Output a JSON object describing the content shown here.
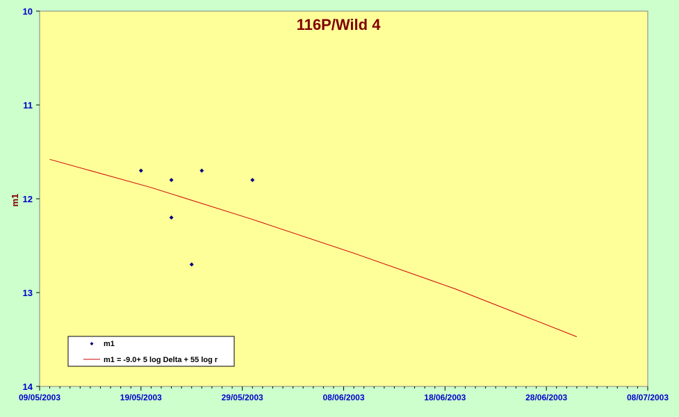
{
  "chart_data": {
    "type": "scatter",
    "title": "116P/Wild 4",
    "xlabel": "",
    "ylabel": "m1",
    "x_axis_type": "date",
    "xlim": [
      "09/05/2003",
      "08/07/2003"
    ],
    "x_tick_labels": [
      "09/05/2003",
      "19/05/2003",
      "29/05/2003",
      "08/06/2003",
      "18/06/2003",
      "28/06/2003",
      "08/07/2003"
    ],
    "ylim": [
      10,
      14
    ],
    "y_inverted": true,
    "y_tick_labels": [
      "10",
      "11",
      "12",
      "13",
      "14"
    ],
    "grid": false,
    "legend_position": "bottom-left",
    "series": [
      {
        "name": "m1",
        "type": "scatter",
        "color": "#000080",
        "points": [
          {
            "x": "19/05/2003",
            "y": 11.7
          },
          {
            "x": "22/05/2003",
            "y": 11.8
          },
          {
            "x": "22/05/2003",
            "y": 12.2
          },
          {
            "x": "24/05/2003",
            "y": 12.7
          },
          {
            "x": "25/05/2003",
            "y": 11.7
          },
          {
            "x": "30/05/2003",
            "y": 11.8
          }
        ]
      },
      {
        "name": "m1 = -9.0+ 5 log Delta + 55 log r",
        "type": "line",
        "color": "#cc0000",
        "points": [
          {
            "x": "10/05/2003",
            "y": 11.58
          },
          {
            "x": "20/05/2003",
            "y": 11.88
          },
          {
            "x": "30/05/2003",
            "y": 12.22
          },
          {
            "x": "09/06/2003",
            "y": 12.58
          },
          {
            "x": "19/06/2003",
            "y": 12.96
          },
          {
            "x": "01/07/2003",
            "y": 13.47
          }
        ]
      }
    ]
  },
  "colors": {
    "page_background": "#ccffcc",
    "plot_background": "#ffff99",
    "axis_label": "#0000cc",
    "title": "#800000"
  }
}
